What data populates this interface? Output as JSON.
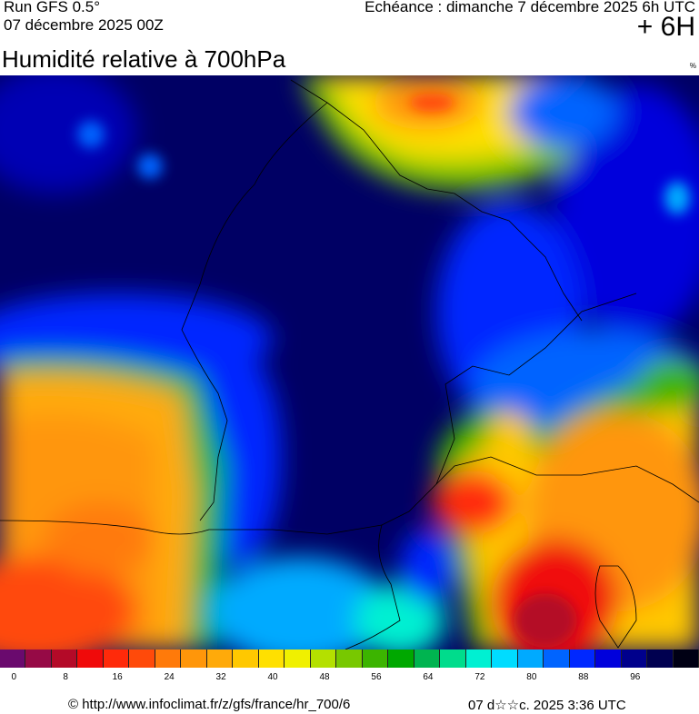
{
  "header": {
    "run": "Run GFS 0.5°",
    "run_date": "07 décembre 2025 00Z",
    "valid": "Echéance : dimanche 7 décembre 2025 6h UTC",
    "lead": "+ 6H",
    "title": "Humidité relative à 700hPa",
    "unit": "%"
  },
  "map": {
    "variable": "relative humidity 700hPa",
    "region": "France"
  },
  "legend": {
    "step": 4,
    "colors": [
      "#6a0a6e",
      "#960a46",
      "#b40a28",
      "#f00a0a",
      "#ff2a0a",
      "#ff4a0a",
      "#ff7a0a",
      "#ff960a",
      "#ffaa0a",
      "#ffc800",
      "#ffe000",
      "#f0f000",
      "#b4e000",
      "#78c800",
      "#3cb400",
      "#00a800",
      "#00b450",
      "#00dc8c",
      "#00f0d2",
      "#00dcff",
      "#00aaff",
      "#0064ff",
      "#0028ff",
      "#0000dc",
      "#00008c",
      "#000050",
      "#000014"
    ],
    "labels": [
      "0",
      "8",
      "16",
      "24",
      "32",
      "40",
      "48",
      "56",
      "64",
      "72",
      "80",
      "88",
      "96"
    ]
  },
  "footer": {
    "source": "© http://www.infoclimat.fr/z/gfs/france/hr_700/6",
    "generated": "07 d☆☆c. 2025  3:36 UTC"
  }
}
